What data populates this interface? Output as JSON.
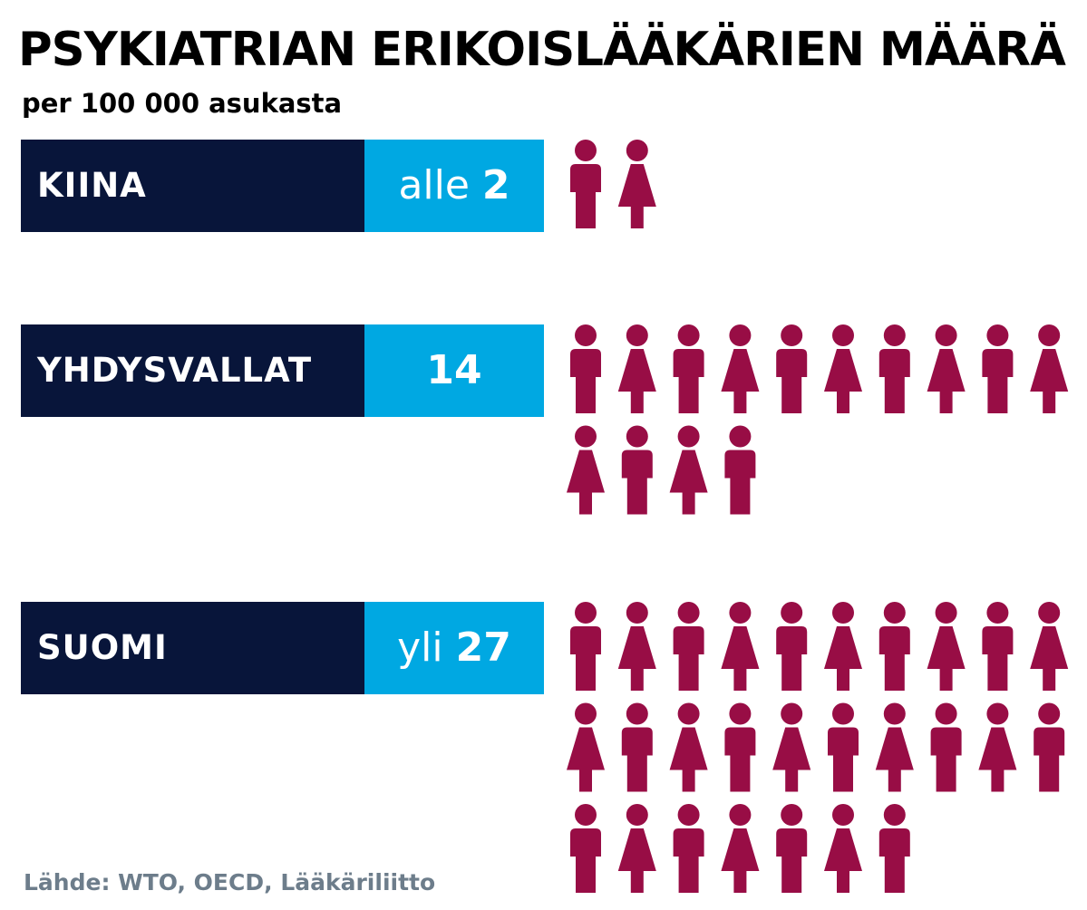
{
  "title": "PSYKIATRIAN ERIKOISLÄÄKÄRIEN MÄÄRÄ",
  "subtitle": "per 100 000 asukasta",
  "source": "Lähde: WTO, OECD, Lääkäriliitto",
  "colors": {
    "country_box": "#08153a",
    "value_box": "#00a8e2",
    "person_icon": "#980d45",
    "source_text": "#6d7d8b"
  },
  "chart_data": {
    "type": "pictogram",
    "title": "PSYKIATRIAN ERIKOISLÄÄKÄRIEN MÄÄRÄ",
    "subtitle": "per 100 000 asukasta",
    "unit": "per 100 000 asukasta",
    "icon": "person-icon (alternating male / female)",
    "categories": [
      "KIINA",
      "YHDYSVALLAT",
      "SUOMI"
    ],
    "series": [
      {
        "labels": [
          "alle 2",
          "14",
          "yli 27"
        ],
        "values": [
          2,
          14,
          27
        ]
      }
    ],
    "rows": [
      {
        "country": "KIINA",
        "prefix": "alle",
        "number": "2",
        "icons": 2
      },
      {
        "country": "YHDYSVALLAT",
        "prefix": "",
        "number": "14",
        "icons": 14
      },
      {
        "country": "SUOMI",
        "prefix": "yli",
        "number": "27",
        "icons": 27
      }
    ]
  }
}
